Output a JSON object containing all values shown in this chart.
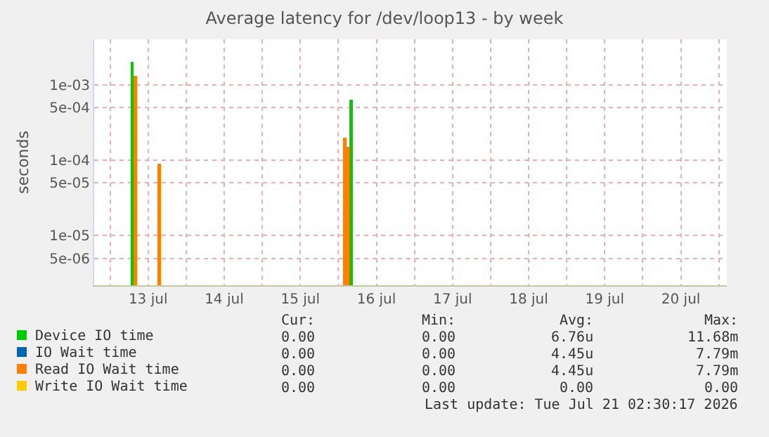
{
  "chart_data": {
    "type": "bar",
    "title": "Average latency for /dev/loop13 - by week",
    "ylabel": "seconds",
    "xlim": [
      "2026-07-12T19:00",
      "2026-07-21T02:30"
    ],
    "xticks": [
      {
        "value": "2026-07-13T00:00",
        "label": null
      },
      {
        "value": "2026-07-13T12:00",
        "label": "13 jul"
      },
      {
        "value": "2026-07-14T00:00",
        "label": null
      },
      {
        "value": "2026-07-14T12:00",
        "label": "14 jul"
      },
      {
        "value": "2026-07-15T00:00",
        "label": null
      },
      {
        "value": "2026-07-15T12:00",
        "label": "15 jul"
      },
      {
        "value": "2026-07-16T00:00",
        "label": null
      },
      {
        "value": "2026-07-16T12:00",
        "label": "16 jul"
      },
      {
        "value": "2026-07-17T00:00",
        "label": null
      },
      {
        "value": "2026-07-17T12:00",
        "label": "17 jul"
      },
      {
        "value": "2026-07-18T00:00",
        "label": null
      },
      {
        "value": "2026-07-18T12:00",
        "label": "18 jul"
      },
      {
        "value": "2026-07-19T00:00",
        "label": null
      },
      {
        "value": "2026-07-19T12:00",
        "label": "19 jul"
      },
      {
        "value": "2026-07-20T00:00",
        "label": null
      },
      {
        "value": "2026-07-20T12:00",
        "label": "20 jul"
      },
      {
        "value": "2026-07-21T00:00",
        "label": null
      }
    ],
    "ylim": [
      2.2e-06,
      0.004
    ],
    "log": true,
    "yticks": [
      {
        "value": 5e-06,
        "label": "5e-06"
      },
      {
        "value": 1e-05,
        "label": "1e-05"
      },
      {
        "value": 5e-05,
        "label": "5e-05"
      },
      {
        "value": 0.0001,
        "label": "1e-04"
      },
      {
        "value": 0.0005,
        "label": "5e-04"
      },
      {
        "value": 0.001,
        "label": "1e-03"
      }
    ],
    "grid": true,
    "legend": "bottom left",
    "series": [
      {
        "name": "Device IO time",
        "color": "#00cc00",
        "x": [
          "2026-07-13T07:00",
          "2026-07-16T04:00"
        ],
        "values": [
          0.002,
          0.00063
        ]
      },
      {
        "name": "IO Wait time",
        "color": "#0066b3"
      },
      {
        "name": "Read IO Wait time",
        "color": "#ff8000",
        "x": [
          "2026-07-13T08:00",
          "2026-07-13T15:30",
          "2026-07-16T02:00",
          "2026-07-16T03:00"
        ],
        "values": [
          0.0013,
          9e-05,
          0.0002,
          0.00015
        ]
      },
      {
        "name": "Write IO Wait time",
        "color": "#ffcc00"
      }
    ],
    "annotations": [
      "Cur:",
      "Min:",
      "Avg:",
      "Max:",
      "0.00",
      "0.00",
      "6.76u",
      "11.68m",
      "0.00",
      "0.00",
      "4.45u",
      "7.79m",
      "0.00",
      "0.00",
      "4.45u",
      "7.79m",
      "0.00",
      "0.00",
      "0.00",
      "0.00",
      "Last update: Tue Jul 21 02:30:17 2026"
    ]
  }
}
